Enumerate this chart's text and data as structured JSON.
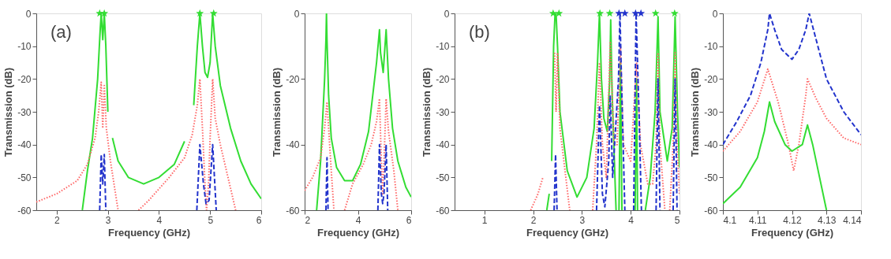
{
  "chart_data": [
    {
      "type": "line",
      "xlabel": "Frequency (GHz)",
      "ylabel": "Transmission (dB)",
      "xlim": [
        1.6,
        6
      ],
      "ylim": [
        -60,
        0
      ],
      "xticks": [
        2,
        3,
        4,
        5,
        6
      ],
      "yticks": [
        0,
        -10,
        -20,
        -30,
        -40,
        -50,
        -60
      ],
      "grid": false,
      "legend": false,
      "annotations": [
        "(a)"
      ],
      "series": [
        {
          "color": "#33dd33",
          "line_style": "solid",
          "x": [
            2.5,
            2.6,
            2.7,
            2.8,
            2.85,
            2.87,
            2.9,
            2.93,
            2.96,
            3.0,
            3.05,
            3.09,
            3.2,
            3.4,
            3.7,
            4.0,
            4.3,
            4.5,
            4.55,
            4.68,
            4.75,
            4.8,
            4.85,
            4.9,
            4.95,
            5.0,
            5.05,
            5.1,
            5.2,
            5.4,
            5.6,
            5.8,
            6.0
          ],
          "values": [
            -60,
            -48,
            -38,
            -20,
            -5,
            0,
            -8,
            0,
            -10,
            -30,
            null,
            -38,
            -45,
            -50,
            -52,
            -50,
            -46,
            -39,
            null,
            -28,
            -10,
            0,
            -10,
            -18,
            -19.5,
            -15,
            0,
            -10,
            -22,
            -35,
            -45,
            -52,
            -56.5
          ]
        },
        {
          "color": "#ff6666",
          "line_style": "dotted",
          "x": [
            1.6,
            2.0,
            2.4,
            2.6,
            2.75,
            2.82,
            2.87,
            2.9,
            2.93,
            2.97,
            3.05,
            3.15,
            3.2,
            3.4,
            3.6,
            3.8,
            4.2,
            4.5,
            4.65,
            4.75,
            4.8,
            4.85,
            4.9,
            4.93,
            4.97,
            5.0,
            5.05,
            5.1,
            5.2,
            5.35,
            5.5
          ],
          "values": [
            -57.5,
            -55,
            -51,
            -46,
            -38,
            -30,
            -21,
            -35,
            -22,
            -35,
            -45,
            -55,
            -60,
            null,
            -60,
            -57,
            -50,
            -44,
            -37,
            -28,
            -20,
            -35,
            -52,
            -60,
            -52,
            -38,
            -20,
            -32,
            -40,
            -50,
            -60
          ]
        },
        {
          "color": "#2233cc",
          "line_style": "dashed",
          "x": [
            2.84,
            2.87,
            2.9,
            2.93,
            2.96,
            3.5,
            4.74,
            4.8,
            4.87,
            4.92,
            4.98,
            5.05,
            5.12
          ],
          "values": [
            -60,
            -43,
            -52,
            -43,
            -60,
            null,
            -60,
            -40,
            -52,
            -58,
            -57,
            -40,
            -60
          ]
        },
        {
          "type": "scatter",
          "marker": "star",
          "color": "#33dd33",
          "x": [
            2.84,
            2.93,
            4.8,
            5.07
          ],
          "values": [
            0,
            0,
            0,
            0
          ]
        }
      ]
    },
    {
      "type": "line",
      "xlabel": "Frequency (GHz)",
      "ylabel": "Transmission (dB)",
      "xlim": [
        2,
        6
      ],
      "ylim": [
        -60,
        0
      ],
      "xticks": [
        2,
        4,
        6
      ],
      "yticks": [
        0,
        -20,
        -40,
        -60
      ],
      "grid": false,
      "legend": false,
      "series": [
        {
          "color": "#33dd33",
          "line_style": "solid",
          "x": [
            2.45,
            2.6,
            2.75,
            2.8,
            2.82,
            2.84,
            2.9,
            3.0,
            3.2,
            3.5,
            3.8,
            4.1,
            4.4,
            4.6,
            4.7,
            4.81,
            4.85,
            4.95,
            5.0,
            5.06,
            5.15,
            5.3,
            5.5,
            5.8,
            6.0
          ],
          "values": [
            -60,
            -45,
            -20,
            -8,
            0,
            -8,
            -25,
            -38,
            -47,
            -51,
            -51,
            -46,
            -36,
            -22,
            -15,
            -5,
            -12,
            -18,
            -12,
            -5,
            -20,
            -35,
            -45,
            -53,
            -56
          ]
        },
        {
          "color": "#ff6666",
          "line_style": "dotted",
          "x": [
            2.0,
            2.3,
            2.6,
            2.75,
            2.84,
            2.9,
            3.0,
            3.1,
            3.3,
            3.5,
            3.8,
            4.2,
            4.5,
            4.7,
            4.81,
            4.88,
            4.93,
            4.98,
            5.06,
            5.15,
            5.35,
            5.5
          ],
          "values": [
            -54,
            -50,
            -44,
            -35,
            -27,
            -35,
            -48,
            -60,
            null,
            -60,
            -52,
            -46,
            -40,
            -33,
            -26,
            -45,
            -55,
            -45,
            -26,
            -36,
            -48,
            -60
          ]
        },
        {
          "color": "#2233cc",
          "line_style": "dashed",
          "x": [
            2.8,
            2.84,
            2.88,
            3.5,
            4.75,
            4.81,
            4.88,
            4.93,
            4.98,
            5.06,
            5.12
          ],
          "values": [
            -60,
            -44,
            -60,
            null,
            -60,
            -40,
            -55,
            -58,
            -55,
            -40,
            -60
          ]
        }
      ]
    },
    {
      "type": "line",
      "xlabel": "Frequency (GHz)",
      "ylabel": "Transmission (dB)",
      "xlim": [
        0.39,
        5
      ],
      "ylim": [
        -60,
        0
      ],
      "xticks": [
        1,
        2,
        3,
        4,
        5
      ],
      "yticks": [
        0,
        -10,
        -20,
        -30,
        -40,
        -50,
        -60
      ],
      "grid": false,
      "legend": false,
      "annotations": [
        "(b)"
      ],
      "series": [
        {
          "color": "#33dd33",
          "line_style": "solid",
          "x": [
            2.28,
            2.33,
            2.35,
            2.38,
            2.42,
            2.45,
            2.47,
            2.5,
            2.55,
            2.7,
            2.9,
            3.1,
            3.25,
            3.32,
            3.36,
            3.4,
            3.45,
            3.52,
            3.57,
            3.59,
            3.62,
            3.7,
            3.73,
            3.76,
            3.79,
            3.82,
            3.95,
            4.09,
            4.12,
            4.14,
            4.2,
            4.3,
            4.4,
            4.5,
            4.56,
            4.6,
            4.75,
            4.85,
            4.91,
            4.96,
            5.0
          ],
          "values": [
            -60,
            -55,
            null,
            -45,
            -10,
            0,
            0,
            -10,
            -30,
            -48,
            -56,
            -50,
            -35,
            -15,
            0,
            -20,
            -32,
            -36,
            -20,
            -2,
            -25,
            -60,
            null,
            -60,
            -15,
            -60,
            null,
            -60,
            -20,
            -60,
            null,
            -60,
            -50,
            -30,
            -1,
            -30,
            -45,
            -35,
            -1,
            -30,
            -47
          ]
        },
        {
          "color": "#ff6666",
          "line_style": "dotted",
          "x": [
            1.95,
            2.1,
            2.2,
            2.3,
            2.44,
            2.47,
            2.5,
            2.55,
            2.75,
            3.0,
            3.22,
            3.3,
            3.36,
            3.42,
            3.5,
            3.58,
            3.66,
            3.72,
            3.79,
            3.85,
            4.0,
            4.12,
            4.2,
            4.35,
            4.45,
            4.52,
            4.56,
            4.6,
            4.7,
            4.75,
            4.8,
            4.87,
            4.91,
            4.95,
            5.0
          ],
          "values": [
            -60,
            -55,
            -50,
            null,
            -12,
            -30,
            -12,
            -35,
            -60,
            null,
            -60,
            -40,
            -15,
            -40,
            -50,
            -9,
            -40,
            -40,
            -10,
            -40,
            -45,
            -15,
            -40,
            -52,
            -52,
            -40,
            -12,
            -40,
            -60,
            null,
            -60,
            -40,
            -12,
            -40,
            -55
          ]
        },
        {
          "color": "#2233cc",
          "line_style": "dashed",
          "x": [
            2.43,
            2.46,
            2.49,
            3.0,
            3.3,
            3.36,
            3.42,
            3.47,
            3.55,
            3.58,
            3.63,
            3.75,
            3.78,
            3.81,
            3.88,
            3.95,
            4.06,
            4.11,
            4.17,
            4.22,
            4.4,
            4.52,
            4.56,
            4.6,
            4.75,
            4.87,
            4.91,
            4.95
          ],
          "values": [
            -60,
            -43,
            -60,
            null,
            -60,
            -28,
            -55,
            -59,
            -45,
            -25,
            -50,
            -20,
            0,
            -20,
            -60,
            null,
            -60,
            0,
            -30,
            -60,
            null,
            -60,
            -20,
            -60,
            null,
            -60,
            -20,
            -60
          ]
        },
        {
          "type": "scatter",
          "marker": "star",
          "color": "#33dd33",
          "x": [
            2.41,
            2.53,
            3.37,
            3.57,
            4.51,
            4.9
          ],
          "values": [
            0,
            0,
            0,
            0,
            0,
            0
          ]
        },
        {
          "type": "scatter",
          "marker": "star",
          "color": "#2233cc",
          "x": [
            3.76,
            3.88,
            4.1,
            4.21
          ],
          "values": [
            0,
            0,
            0,
            0
          ]
        }
      ]
    },
    {
      "type": "line",
      "xlabel": "Frequency (GHz)",
      "ylabel": "Transmission (dB)",
      "xlim": [
        4.1,
        4.14
      ],
      "ylim": [
        -60,
        0
      ],
      "xticks": [
        4.1,
        4.11,
        4.12,
        4.13,
        4.14
      ],
      "yticks": [
        0,
        -10,
        -20,
        -30,
        -40,
        -50,
        -60
      ],
      "grid": false,
      "legend": false,
      "series": [
        {
          "color": "#2233cc",
          "line_style": "dashed",
          "x": [
            4.1,
            4.104,
            4.108,
            4.111,
            4.113,
            4.1135,
            4.115,
            4.117,
            4.12,
            4.122,
            4.124,
            4.125,
            4.127,
            4.13,
            4.135,
            4.14
          ],
          "values": [
            -40,
            -33,
            -25,
            -15,
            -5,
            0,
            -5,
            -11,
            -14,
            -11,
            -5,
            0,
            -8,
            -20,
            -30,
            -37
          ]
        },
        {
          "color": "#ff6666",
          "line_style": "dotted",
          "x": [
            4.1,
            4.105,
            4.11,
            4.113,
            4.116,
            4.119,
            4.1205,
            4.122,
            4.124,
            4.1245,
            4.127,
            4.13,
            4.135,
            4.14
          ],
          "values": [
            -42,
            -36,
            -27,
            -17,
            -27,
            -40,
            -48,
            -40,
            -25,
            -20,
            -26,
            -32,
            -38,
            -40
          ]
        },
        {
          "color": "#33dd33",
          "line_style": "solid",
          "x": [
            4.1,
            4.105,
            4.11,
            4.112,
            4.1135,
            4.115,
            4.118,
            4.12,
            4.123,
            4.1245,
            4.126,
            4.128,
            4.13
          ],
          "values": [
            -58,
            -53,
            -44,
            -36,
            -27,
            -33,
            -40,
            -42,
            -40,
            -34,
            -40,
            -50,
            -60
          ]
        }
      ]
    }
  ]
}
